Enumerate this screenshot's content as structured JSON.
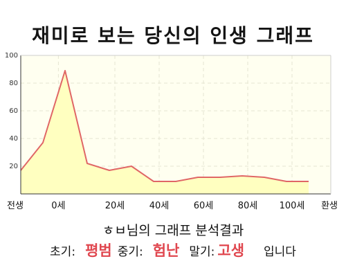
{
  "title": "재미로 보는 당신의 인생 그래프",
  "chart_data": {
    "type": "area",
    "x": [
      0,
      1,
      2,
      3,
      4,
      5,
      6,
      7,
      8,
      9,
      10,
      11,
      12,
      13
    ],
    "x_tick_labels": [
      "전생",
      "0세",
      "20세",
      "40세",
      "60세",
      "80세",
      "100세",
      "환생"
    ],
    "x_tick_positions": [
      0,
      1.7,
      4.25,
      6.25,
      8.25,
      10.25,
      12.25,
      14
    ],
    "xlim": [
      0,
      14
    ],
    "values": [
      17,
      37,
      89,
      22,
      17,
      20,
      9,
      9,
      12,
      12,
      13,
      12,
      9,
      9
    ],
    "ylim": [
      0,
      100
    ],
    "y_ticks": [
      20,
      40,
      60,
      80,
      100
    ],
    "grid": true,
    "line_color": "#e06666",
    "fill_color": "#ffffc0",
    "plot_background": "#fffff0"
  },
  "subtitle": "ㅎㅂ님의 그래프 분석결과",
  "summary": {
    "early_label": "초기:",
    "early_value": "평범",
    "middle_label": "중기:",
    "middle_value": "험난",
    "late_label": "말기:",
    "late_value": "고생",
    "ending": "입니다"
  }
}
